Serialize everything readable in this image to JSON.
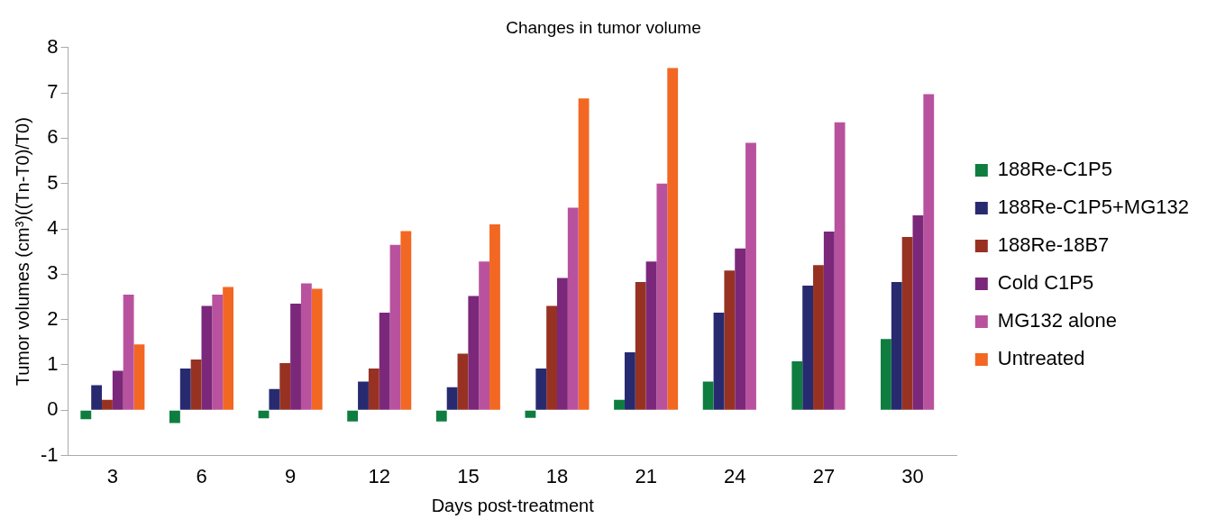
{
  "chart_data": {
    "type": "bar",
    "title": "Changes in tumor volume",
    "xlabel": "Days post-treatment",
    "ylabel": "Tumor volumes (cm³)((Tn-T0)/T0)",
    "categories": [
      "3",
      "6",
      "9",
      "12",
      "15",
      "18",
      "21",
      "24",
      "27",
      "30"
    ],
    "series": [
      {
        "name": "188Re-C1P5",
        "color": "#0e7d3f",
        "values": [
          -0.2,
          -0.28,
          -0.18,
          -0.25,
          -0.25,
          -0.17,
          0.23,
          0.63,
          1.08,
          1.57
        ]
      },
      {
        "name": "188Re-C1P5+MG132",
        "color": "#282a70",
        "values": [
          0.55,
          0.92,
          0.47,
          0.63,
          0.51,
          0.92,
          1.28,
          2.15,
          2.75,
          2.83
        ]
      },
      {
        "name": "188Re-18B7",
        "color": "#973222",
        "values": [
          0.23,
          1.12,
          1.04,
          0.92,
          1.25,
          2.3,
          2.83,
          3.08,
          3.2,
          3.82
        ]
      },
      {
        "name": "Cold C1P5",
        "color": "#7b287b",
        "values": [
          0.87,
          2.3,
          2.35,
          2.15,
          2.52,
          2.92,
          3.28,
          3.57,
          3.94,
          4.3
        ]
      },
      {
        "name": "MG132 alone",
        "color": "#b9529e",
        "values": [
          2.55,
          2.55,
          2.8,
          3.65,
          3.28,
          4.47,
          5.0,
          5.9,
          6.35,
          6.97
        ]
      },
      {
        "name": "Untreated",
        "color": "#f26722",
        "values": [
          1.45,
          2.72,
          2.68,
          3.95,
          4.1,
          6.88,
          7.55,
          null,
          null,
          null
        ]
      }
    ],
    "ylim": [
      -1,
      8
    ],
    "yticks": [
      -1,
      0,
      1,
      2,
      3,
      4,
      5,
      6,
      7,
      8
    ],
    "grid": false,
    "legend": "right"
  }
}
